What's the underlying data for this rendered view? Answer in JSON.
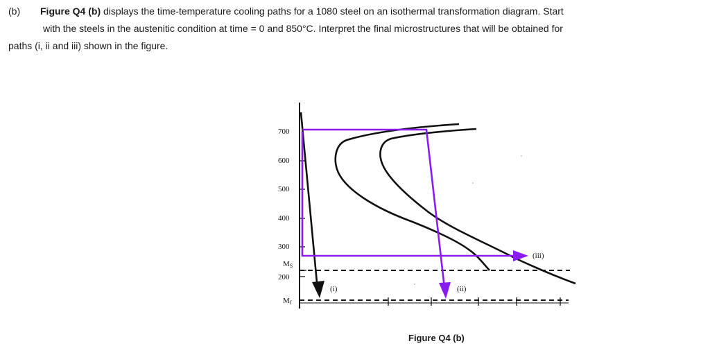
{
  "question": {
    "label": "(b)",
    "figure_ref": "Figure Q4 (b)",
    "line1_rest": " displays the time-temperature cooling paths for a 1080 steel on an isothermal transformation diagram. Start",
    "line2": "with the steels in the austenitic condition at time = 0 and 850°C. Interpret the final microstructures that will be obtained for",
    "line3": "paths (i, ii and iii) shown in the figure."
  },
  "figure": {
    "caption": "Figure Q4 (b)",
    "y_ticks": [
      "700",
      "600",
      "500",
      "400",
      "300",
      "200"
    ],
    "ms_label": "M",
    "ms_sub": "S",
    "mf_label": "M",
    "mf_sub": "f",
    "paths": [
      {
        "id": "i",
        "label": "(i)"
      },
      {
        "id": "ii",
        "label": "(ii)"
      },
      {
        "id": "iii",
        "label": "(iii)"
      }
    ],
    "colors": {
      "curve": "#111111",
      "cooling_path": "#8a1cf0",
      "dashed": "#111111"
    }
  }
}
